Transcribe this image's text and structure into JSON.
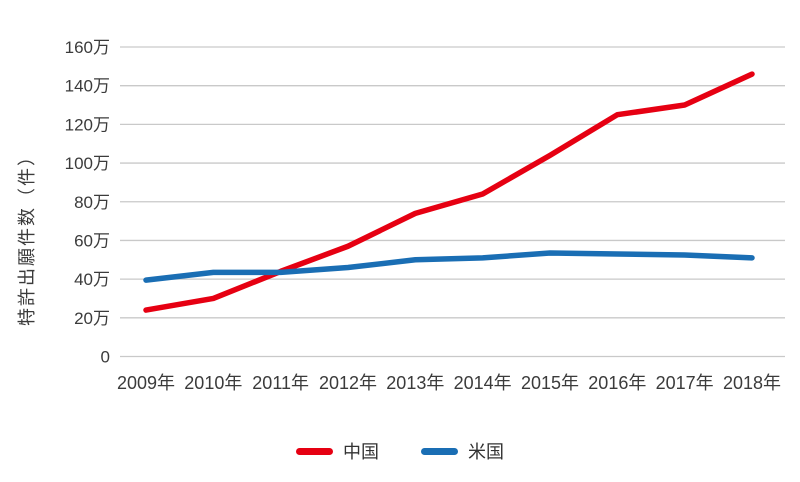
{
  "chart_data": {
    "type": "line",
    "title": "",
    "xlabel": "",
    "ylabel": "特許出願件数（件）",
    "x_categories": [
      "2009年",
      "2010年",
      "2011年",
      "2012年",
      "2013年",
      "2014年",
      "2015年",
      "2016年",
      "2017年",
      "2018年"
    ],
    "y_unit": "万",
    "ylim": [
      0,
      160
    ],
    "y_ticks": [
      {
        "value": 0,
        "label": "0"
      },
      {
        "value": 20,
        "label": "20万"
      },
      {
        "value": 40,
        "label": "40万"
      },
      {
        "value": 60,
        "label": "60万"
      },
      {
        "value": 80,
        "label": "80万"
      },
      {
        "value": 100,
        "label": "100万"
      },
      {
        "value": 120,
        "label": "120万"
      },
      {
        "value": 140,
        "label": "140万"
      },
      {
        "value": 160,
        "label": "160万"
      }
    ],
    "grid": true,
    "legend_position": "bottom",
    "series": [
      {
        "id": "china",
        "name": "中国",
        "color": "#e60012",
        "values": [
          24,
          30,
          44,
          57,
          74,
          84,
          104,
          125,
          130,
          146
        ]
      },
      {
        "id": "usa",
        "name": "米国",
        "color": "#1a6eb4",
        "values": [
          39.5,
          43.5,
          43.5,
          46,
          50,
          51,
          53.5,
          53,
          52.5,
          51
        ]
      }
    ]
  },
  "colors": {
    "gridline": "#c9c9c9",
    "tick_text": "#3b3b3b",
    "background": "#ffffff"
  }
}
